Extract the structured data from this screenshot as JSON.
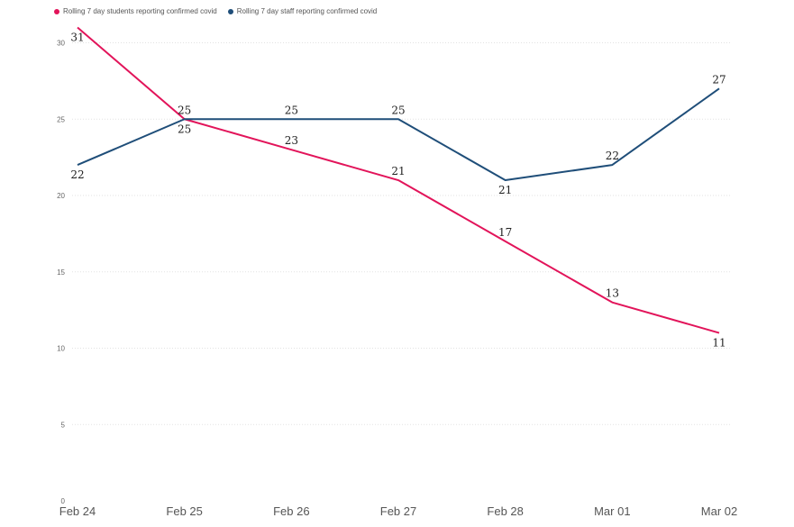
{
  "chart_data": {
    "type": "line",
    "categories": [
      "Feb 24",
      "Feb 25",
      "Feb 26",
      "Feb 27",
      "Feb 28",
      "Mar 01",
      "Mar 02"
    ],
    "series": [
      {
        "name": "Rolling 7 day students reporting confirmed covid",
        "color": "#e2145a",
        "values": [
          31,
          25,
          23,
          21,
          17,
          13,
          11
        ],
        "label_pos": [
          "below",
          "below",
          "above",
          "above",
          "above",
          "above",
          "below"
        ]
      },
      {
        "name": "Rolling 7 day staff reporting confirmed covid",
        "color": "#1f4e79",
        "values": [
          22,
          25,
          25,
          25,
          21,
          22,
          27
        ],
        "label_pos": [
          "below",
          "above",
          "above",
          "above",
          "below",
          "above",
          "above"
        ]
      }
    ],
    "ylim": [
      0,
      31
    ],
    "yticks": [
      0,
      5,
      10,
      15,
      20,
      25,
      30
    ],
    "grid": "horizontal dotted",
    "legend_position": "top-left"
  }
}
